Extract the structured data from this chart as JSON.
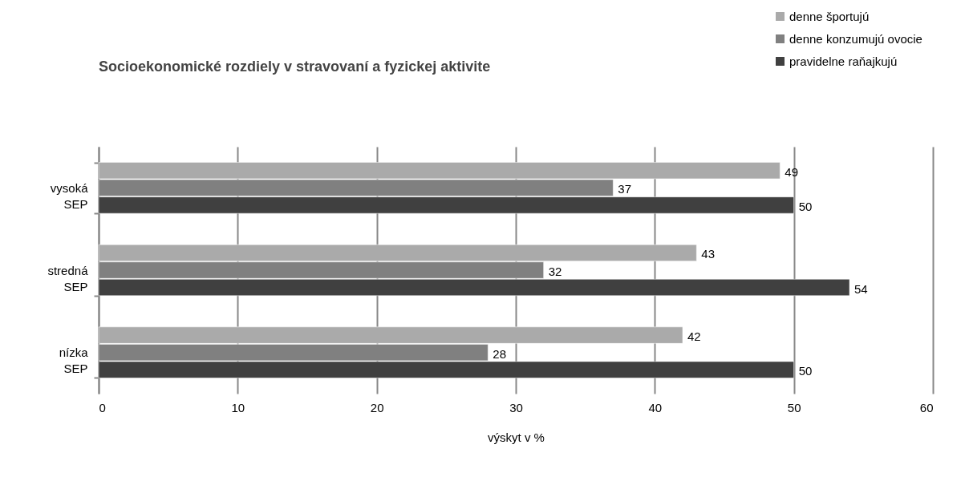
{
  "chart_data": {
    "type": "bar",
    "orientation": "horizontal",
    "title": "Socioekonomické rozdiely v stravovaní a fyzickej aktivite",
    "categories": [
      "vysoká SEP",
      "stredná SEP",
      "nízka SEP"
    ],
    "series": [
      {
        "name": "denne športujú",
        "color": "#aaaaaa",
        "values": [
          49,
          43,
          42
        ]
      },
      {
        "name": "denne konzumujú ovocie",
        "color": "#808080",
        "values": [
          37,
          32,
          28
        ]
      },
      {
        "name": "pravidelne raňajkujú",
        "color": "#404040",
        "values": [
          50,
          54,
          50
        ]
      }
    ],
    "xlabel": "výskyt v %",
    "xlim": [
      0,
      60
    ],
    "xticks": [
      0,
      10,
      20,
      30,
      40,
      50,
      60
    ],
    "grid": "x",
    "legend": "top right",
    "data_labels": true
  }
}
